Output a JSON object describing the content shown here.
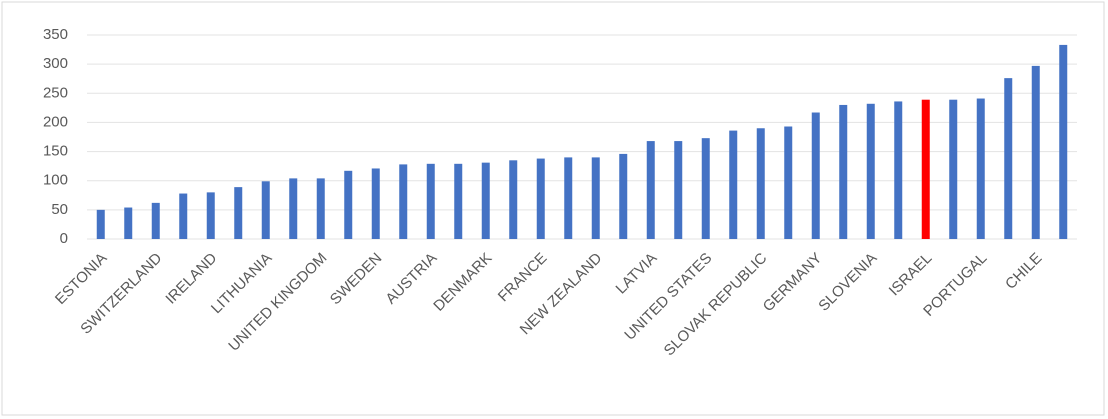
{
  "chart_data": {
    "type": "bar",
    "categories": [
      "ESTONIA",
      null,
      "SWITZERLAND",
      null,
      "IRELAND",
      null,
      "LITHUANIA",
      null,
      "UNITED KINGDOM",
      null,
      "SWEDEN",
      null,
      "AUSTRIA",
      null,
      "DENMARK",
      null,
      "FRANCE",
      null,
      "NEW ZEALAND",
      null,
      "LATVIA",
      null,
      "UNITED STATES",
      null,
      "SLOVAK REPUBLIC",
      null,
      "GERMANY",
      null,
      "SLOVENIA",
      null,
      "ISRAEL",
      null,
      "PORTUGAL",
      null,
      "CHILE",
      null
    ],
    "values": [
      50,
      54,
      62,
      78,
      80,
      89,
      99,
      104,
      104,
      117,
      121,
      128,
      129,
      129,
      131,
      135,
      138,
      140,
      140,
      146,
      168,
      168,
      173,
      186,
      190,
      193,
      217,
      230,
      232,
      236,
      239,
      239,
      241,
      276,
      297,
      333
    ],
    "color": "#4472c4",
    "highlight_color": "#ff0000",
    "highlight_index": 30,
    "ylim": [
      0,
      350
    ],
    "yticks": [
      0,
      50,
      100,
      150,
      200,
      250,
      300,
      350
    ],
    "grid": true
  }
}
